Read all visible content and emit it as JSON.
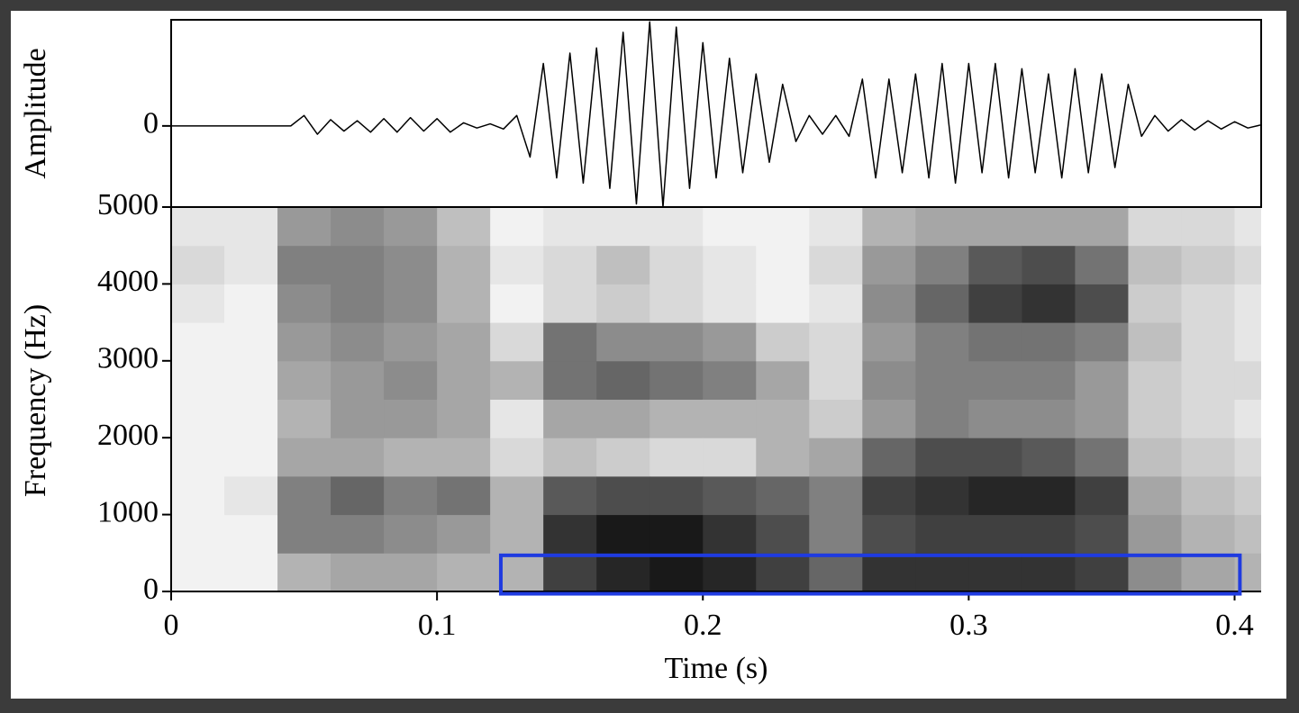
{
  "chart_data": [
    {
      "type": "line",
      "ylabel": "Amplitude",
      "color": "#000000",
      "xlim": [
        0,
        0.41
      ],
      "ylim": [
        -0.78,
        1.02
      ],
      "yticks": [
        0
      ],
      "x": [
        0,
        0.005,
        0.01,
        0.015,
        0.02,
        0.025,
        0.03,
        0.035,
        0.04,
        0.045,
        0.05,
        0.055,
        0.06,
        0.065,
        0.07,
        0.075,
        0.08,
        0.085,
        0.09,
        0.095,
        0.1,
        0.105,
        0.11,
        0.115,
        0.12,
        0.125,
        0.13,
        0.135,
        0.14,
        0.145,
        0.15,
        0.155,
        0.16,
        0.165,
        0.17,
        0.175,
        0.18,
        0.185,
        0.19,
        0.195,
        0.2,
        0.205,
        0.21,
        0.215,
        0.22,
        0.225,
        0.23,
        0.235,
        0.24,
        0.245,
        0.25,
        0.255,
        0.26,
        0.265,
        0.27,
        0.275,
        0.28,
        0.285,
        0.29,
        0.295,
        0.3,
        0.305,
        0.31,
        0.315,
        0.32,
        0.325,
        0.33,
        0.335,
        0.34,
        0.345,
        0.35,
        0.355,
        0.36,
        0.365,
        0.37,
        0.375,
        0.38,
        0.385,
        0.39,
        0.395,
        0.4,
        0.405,
        0.41
      ],
      "values": [
        0,
        0,
        0,
        0,
        0,
        0,
        0,
        0,
        0,
        0,
        0.1,
        -0.08,
        0.06,
        -0.05,
        0.05,
        -0.06,
        0.07,
        -0.06,
        0.08,
        -0.05,
        0.07,
        -0.06,
        0.03,
        -0.02,
        0.02,
        -0.03,
        0.1,
        -0.3,
        0.6,
        -0.5,
        0.7,
        -0.55,
        0.75,
        -0.6,
        0.9,
        -0.75,
        1.0,
        -0.78,
        0.95,
        -0.6,
        0.8,
        -0.5,
        0.65,
        -0.45,
        0.5,
        -0.35,
        0.4,
        -0.15,
        0.1,
        -0.08,
        0.1,
        -0.1,
        0.45,
        -0.5,
        0.45,
        -0.45,
        0.5,
        -0.5,
        0.6,
        -0.55,
        0.6,
        -0.45,
        0.6,
        -0.5,
        0.55,
        -0.45,
        0.5,
        -0.5,
        0.55,
        -0.45,
        0.5,
        -0.4,
        0.4,
        -0.1,
        0.1,
        -0.05,
        0.06,
        -0.04,
        0.05,
        -0.03,
        0.04,
        -0.02,
        0.01
      ]
    },
    {
      "type": "heatmap",
      "xlabel": "Time (s)",
      "ylabel": "Frequency (Hz)",
      "xlim": [
        0,
        0.41
      ],
      "ylim": [
        0,
        5000
      ],
      "xticks": [
        0,
        0.1,
        0.2,
        0.3,
        0.4
      ],
      "yticks": [
        0,
        1000,
        2000,
        3000,
        4000,
        5000
      ],
      "x_bins": [
        0,
        0.02,
        0.04,
        0.06,
        0.08,
        0.1,
        0.12,
        0.14,
        0.16,
        0.18,
        0.2,
        0.22,
        0.24,
        0.26,
        0.28,
        0.3,
        0.32,
        0.34,
        0.36,
        0.38,
        0.4,
        0.42
      ],
      "y_bins": [
        0,
        500,
        1000,
        1500,
        2000,
        2500,
        3000,
        3500,
        4000,
        4500,
        5000
      ],
      "values": [
        [
          0.05,
          0.05,
          0.05,
          0.05,
          0.05,
          0.05,
          0.05,
          0.1,
          0.15,
          0.1
        ],
        [
          0.05,
          0.05,
          0.1,
          0.05,
          0.05,
          0.05,
          0.05,
          0.05,
          0.1,
          0.1
        ],
        [
          0.3,
          0.5,
          0.5,
          0.35,
          0.3,
          0.35,
          0.4,
          0.45,
          0.5,
          0.4
        ],
        [
          0.35,
          0.5,
          0.6,
          0.35,
          0.4,
          0.4,
          0.45,
          0.5,
          0.5,
          0.45
        ],
        [
          0.35,
          0.45,
          0.5,
          0.3,
          0.4,
          0.45,
          0.4,
          0.45,
          0.45,
          0.4
        ],
        [
          0.3,
          0.4,
          0.55,
          0.3,
          0.35,
          0.35,
          0.35,
          0.3,
          0.3,
          0.25
        ],
        [
          0.3,
          0.3,
          0.3,
          0.15,
          0.1,
          0.3,
          0.15,
          0.05,
          0.1,
          0.05
        ],
        [
          0.75,
          0.8,
          0.65,
          0.25,
          0.35,
          0.55,
          0.55,
          0.15,
          0.15,
          0.1
        ],
        [
          0.85,
          0.9,
          0.7,
          0.2,
          0.35,
          0.6,
          0.45,
          0.2,
          0.25,
          0.1
        ],
        [
          0.9,
          0.9,
          0.7,
          0.15,
          0.3,
          0.55,
          0.45,
          0.15,
          0.15,
          0.1
        ],
        [
          0.85,
          0.8,
          0.65,
          0.15,
          0.3,
          0.5,
          0.4,
          0.1,
          0.1,
          0.05
        ],
        [
          0.75,
          0.7,
          0.6,
          0.3,
          0.3,
          0.35,
          0.2,
          0.05,
          0.05,
          0.05
        ],
        [
          0.6,
          0.5,
          0.5,
          0.35,
          0.2,
          0.15,
          0.15,
          0.1,
          0.15,
          0.1
        ],
        [
          0.8,
          0.7,
          0.75,
          0.6,
          0.4,
          0.45,
          0.4,
          0.45,
          0.4,
          0.3
        ],
        [
          0.8,
          0.75,
          0.8,
          0.7,
          0.5,
          0.5,
          0.5,
          0.6,
          0.5,
          0.35
        ],
        [
          0.8,
          0.75,
          0.85,
          0.7,
          0.45,
          0.5,
          0.55,
          0.75,
          0.65,
          0.35
        ],
        [
          0.8,
          0.75,
          0.85,
          0.65,
          0.45,
          0.5,
          0.55,
          0.8,
          0.7,
          0.35
        ],
        [
          0.75,
          0.7,
          0.75,
          0.55,
          0.4,
          0.4,
          0.5,
          0.7,
          0.55,
          0.35
        ],
        [
          0.45,
          0.4,
          0.35,
          0.25,
          0.2,
          0.2,
          0.25,
          0.2,
          0.25,
          0.15
        ],
        [
          0.35,
          0.3,
          0.25,
          0.2,
          0.15,
          0.15,
          0.15,
          0.15,
          0.2,
          0.15
        ],
        [
          0.3,
          0.25,
          0.2,
          0.15,
          0.1,
          0.15,
          0.1,
          0.1,
          0.15,
          0.1
        ]
      ],
      "highlight": {
        "x": [
          0.124,
          0.402
        ],
        "y": [
          -30,
          470
        ],
        "color": "#1f3be0"
      }
    }
  ]
}
